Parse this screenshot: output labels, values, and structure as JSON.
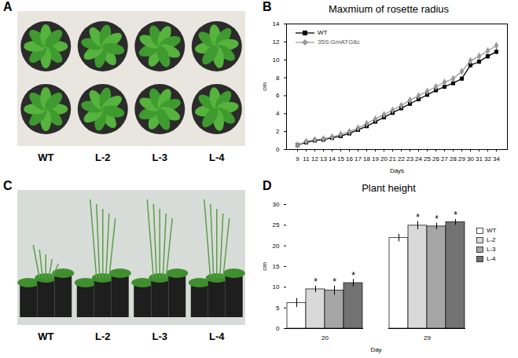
{
  "photos": [
    {
      "panel_label": "A",
      "labels": [
        "WT",
        "L-2",
        "L-3",
        "L-4"
      ]
    },
    {
      "panel_label": "C",
      "labels": [
        "WT",
        "L-2",
        "L-3",
        "L-4"
      ]
    }
  ],
  "chart_data": [
    {
      "panel_label": "B",
      "type": "line",
      "title": "Maxmium of rosette radius",
      "x_label": "Days",
      "y_label": "cm",
      "categories": [
        9,
        11,
        12,
        13,
        14,
        15,
        16,
        17,
        18,
        19,
        20,
        21,
        22,
        23,
        24,
        25,
        26,
        27,
        28,
        29,
        30,
        31,
        32,
        34
      ],
      "ylim": [
        0,
        14
      ],
      "yticks": [
        0,
        2,
        4,
        6,
        8,
        10,
        12,
        14
      ],
      "legend": "top-left",
      "series": [
        {
          "name": "WT",
          "color": "#000000",
          "marker": "square",
          "values": [
            0.5,
            0.8,
            1.0,
            1.1,
            1.3,
            1.5,
            1.8,
            2.2,
            2.6,
            3.1,
            3.6,
            4.1,
            4.6,
            5.1,
            5.6,
            6.1,
            6.6,
            7.0,
            7.4,
            7.9,
            9.4,
            9.8,
            10.4,
            10.9
          ],
          "errors": [
            0.1,
            0.1,
            0.1,
            0.1,
            0.1,
            0.1,
            0.1,
            0.1,
            0.1,
            0.1,
            0.2,
            0.2,
            0.2,
            0.2,
            0.2,
            0.2,
            0.2,
            0.2,
            0.2,
            0.2,
            0.3,
            0.3,
            0.3,
            0.3
          ]
        },
        {
          "name": "35S:GmATG8c",
          "color": "#999999",
          "marker": "diamond",
          "values": [
            0.5,
            0.9,
            1.1,
            1.2,
            1.4,
            1.7,
            2.0,
            2.4,
            2.9,
            3.4,
            3.9,
            4.4,
            4.9,
            5.5,
            6.0,
            6.5,
            7.0,
            7.5,
            7.9,
            8.7,
            9.9,
            10.4,
            11.0,
            11.6
          ],
          "errors": [
            0.1,
            0.1,
            0.1,
            0.1,
            0.1,
            0.1,
            0.1,
            0.1,
            0.1,
            0.1,
            0.2,
            0.2,
            0.2,
            0.2,
            0.2,
            0.2,
            0.2,
            0.2,
            0.2,
            0.2,
            0.3,
            0.3,
            0.3,
            0.3
          ]
        }
      ]
    },
    {
      "panel_label": "D",
      "type": "bar",
      "title": "Plant height",
      "x_label": "Day",
      "y_label": "cm",
      "categories": [
        "20",
        "29"
      ],
      "ylim": [
        0,
        30
      ],
      "yticks": [
        0,
        5,
        10,
        15,
        20,
        25,
        30
      ],
      "legend": "right",
      "series": [
        {
          "name": "WT",
          "color": "#ffffff",
          "values": [
            6.2,
            21.9
          ],
          "errors": [
            1.1,
            0.9
          ],
          "annotations": [
            null,
            null
          ]
        },
        {
          "name": "L-2",
          "color": "#d9d9d9",
          "values": [
            9.5,
            24.9
          ],
          "errors": [
            0.8,
            1.0
          ],
          "annotations": [
            "*",
            "*"
          ]
        },
        {
          "name": "L-3",
          "color": "#a6a6a6",
          "values": [
            9.2,
            24.7
          ],
          "errors": [
            1.1,
            0.8
          ],
          "annotations": [
            "*",
            "*"
          ]
        },
        {
          "name": "L-4",
          "color": "#737373",
          "values": [
            11.0,
            25.7
          ],
          "errors": [
            0.9,
            0.7
          ],
          "annotations": [
            "*",
            "*"
          ]
        }
      ]
    }
  ]
}
